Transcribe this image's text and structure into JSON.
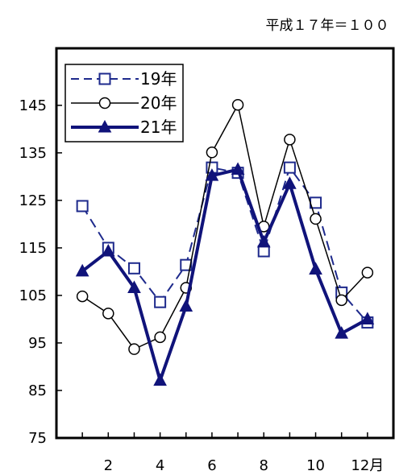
{
  "chart_data": {
    "type": "line",
    "note": "平成１７年＝１００",
    "x": [
      1,
      2,
      3,
      4,
      5,
      6,
      7,
      8,
      9,
      10,
      11,
      12
    ],
    "xtick_labels": [
      {
        "x": 2,
        "label": "2"
      },
      {
        "x": 4,
        "label": "4"
      },
      {
        "x": 6,
        "label": "6"
      },
      {
        "x": 8,
        "label": "8"
      },
      {
        "x": 10,
        "label": "10"
      },
      {
        "x": 12,
        "label": "12月"
      }
    ],
    "yticks": [
      75,
      85,
      95,
      105,
      115,
      125,
      135,
      145
    ],
    "ylim": [
      75,
      157
    ],
    "xlim": [
      0,
      13
    ],
    "grid": false,
    "legend_position": "top-left",
    "series": [
      {
        "name": "19年",
        "values": [
          123.8,
          115.0,
          110.7,
          103.6,
          111.4,
          131.9,
          130.8,
          114.3,
          131.9,
          124.5,
          105.6,
          99.3
        ],
        "color": "#1e2a8c",
        "marker": "open-square",
        "line": "dashed"
      },
      {
        "name": "20年",
        "values": [
          104.8,
          101.2,
          93.7,
          96.2,
          106.6,
          135.1,
          145.1,
          119.5,
          137.8,
          121.1,
          104.0,
          109.8
        ],
        "color": "#000000",
        "marker": "open-circle",
        "line": "solid"
      },
      {
        "name": "21年",
        "values": [
          110.1,
          114.3,
          106.6,
          87.1,
          102.7,
          130.2,
          131.5,
          116.2,
          128.5,
          110.5,
          97.0,
          100.0
        ],
        "color": "#10137a",
        "marker": "filled-triangle",
        "line": "thick"
      }
    ]
  }
}
